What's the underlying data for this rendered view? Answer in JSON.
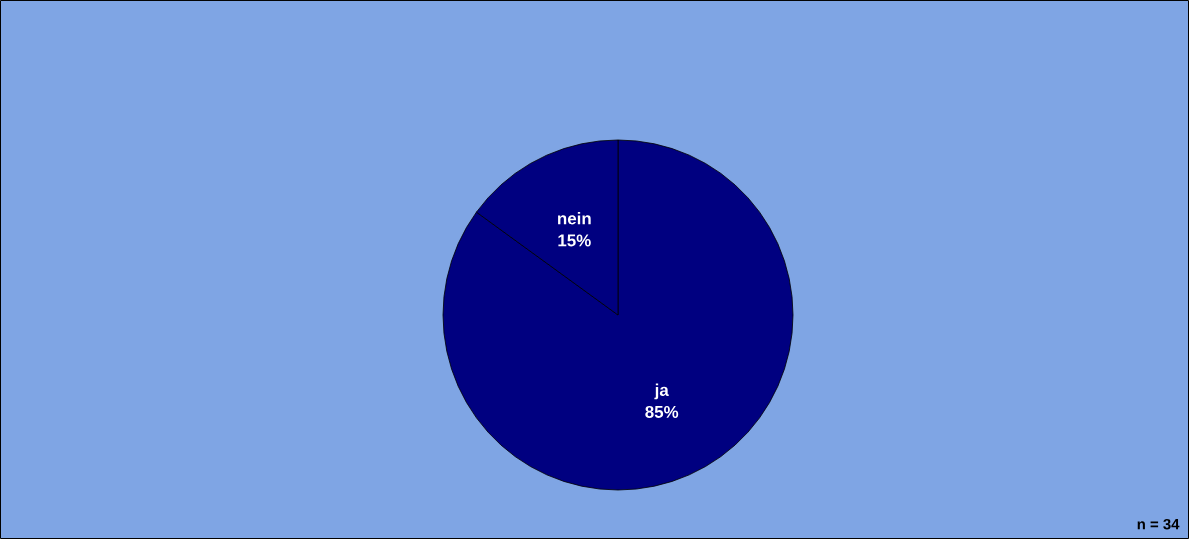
{
  "chart_data": {
    "type": "pie",
    "categories": [
      "ja",
      "nein"
    ],
    "values": [
      85,
      15
    ],
    "colors": [
      "#000080",
      "#000080"
    ],
    "value_labels": [
      "85%",
      "15%"
    ],
    "annotations": [
      "n = 34"
    ]
  }
}
